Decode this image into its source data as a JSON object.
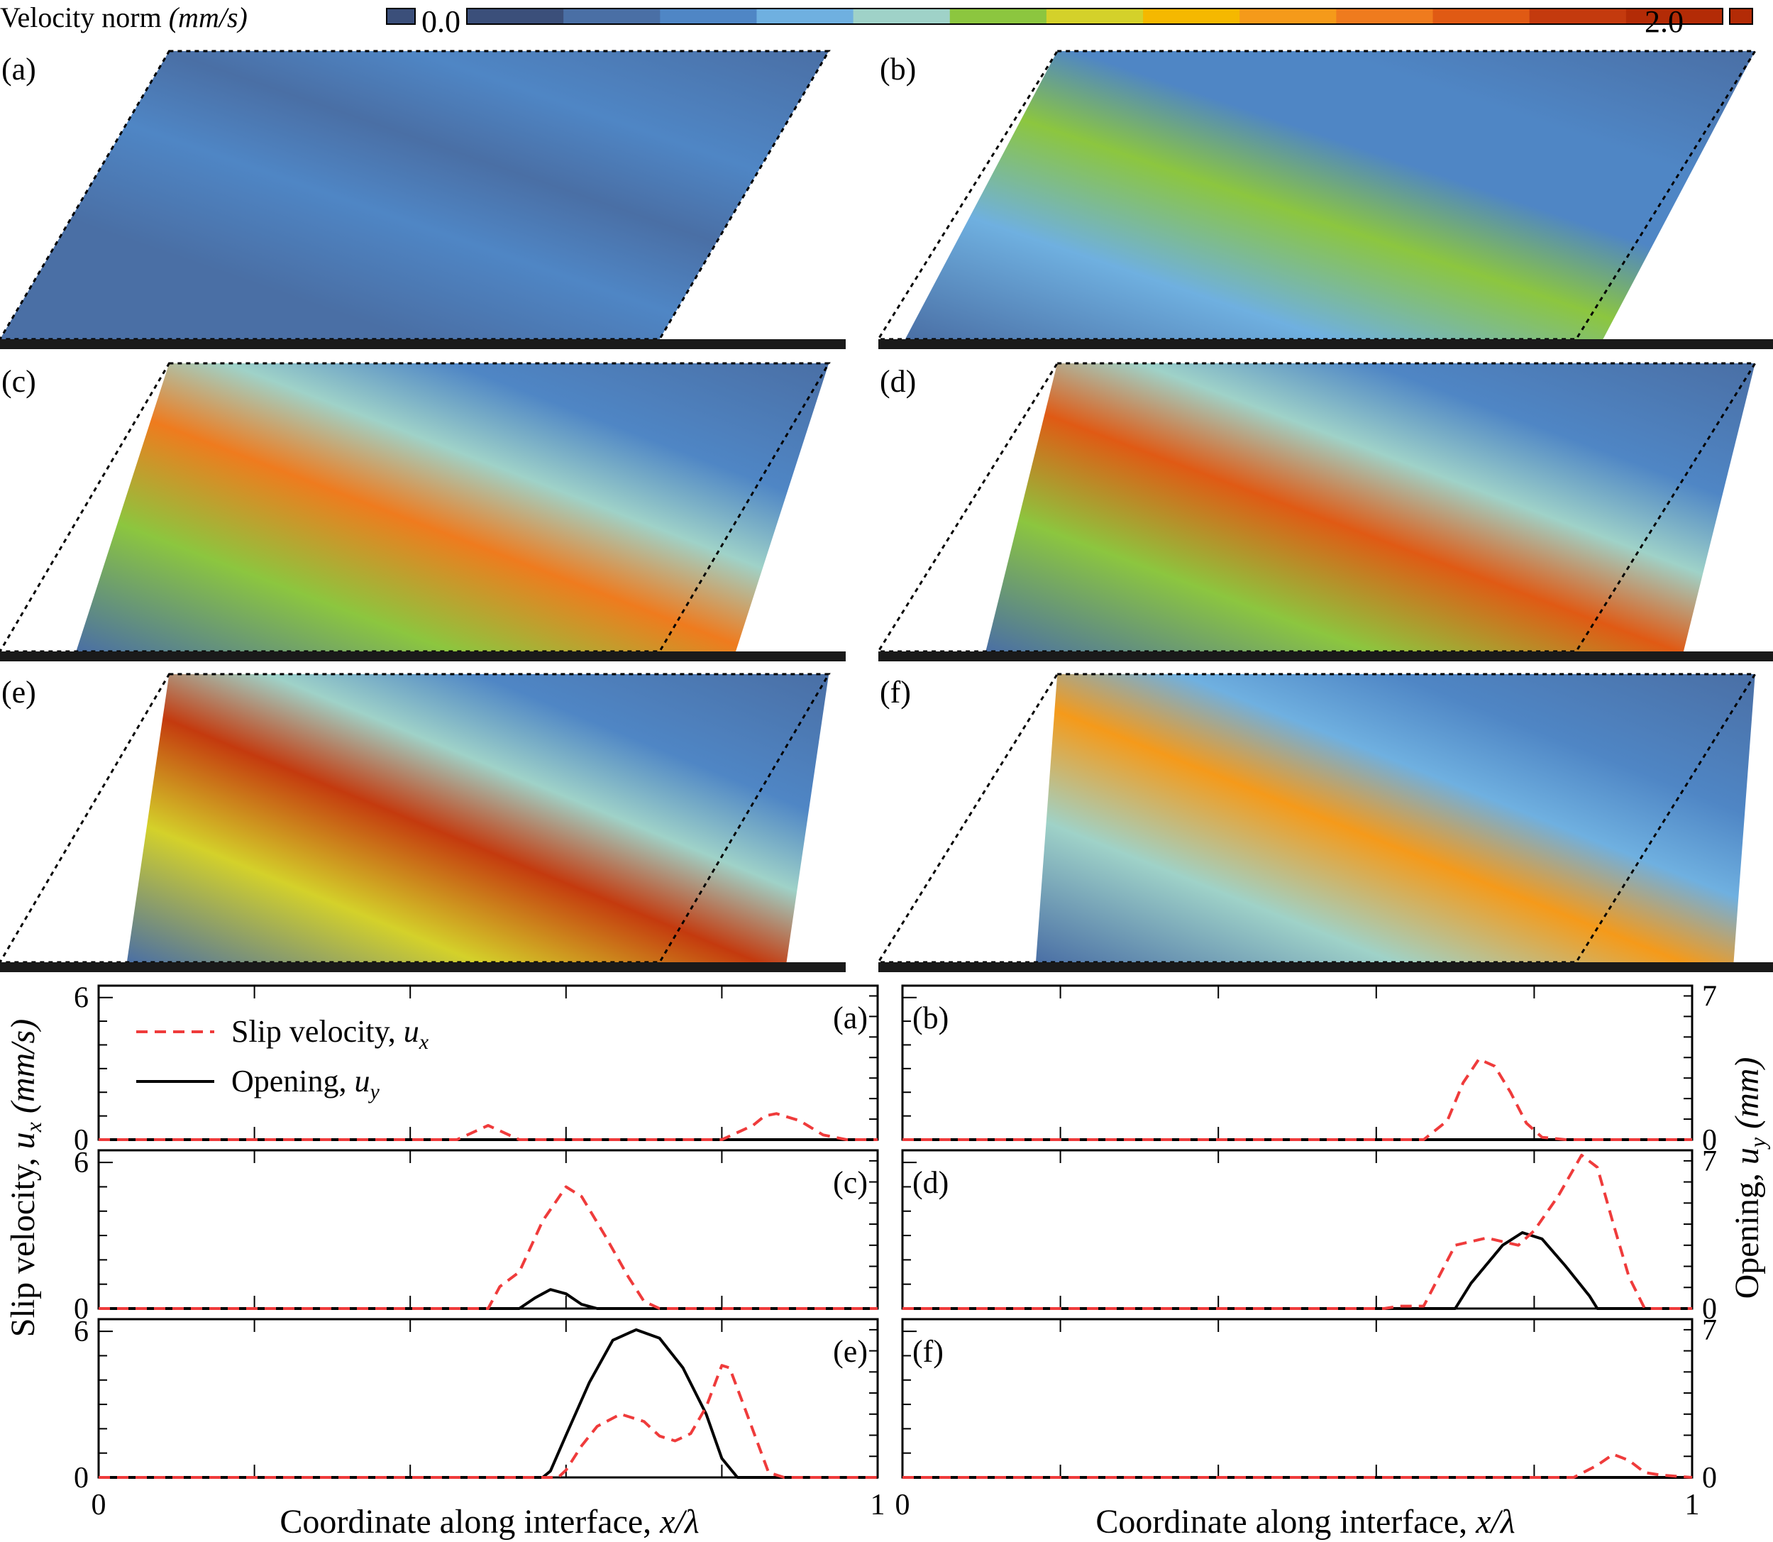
{
  "colorbar": {
    "label_plain": "Velocity norm ",
    "label_unit": "(mm/s)",
    "min_label": "0.0",
    "max_label": "2.0",
    "colors": [
      "#3b4f7a",
      "#4a6fa5",
      "#4f86c5",
      "#6fb0e0",
      "#9fd2c8",
      "#8cc63f",
      "#d4d12a",
      "#f5b800",
      "#f59a1a",
      "#ef7b1e",
      "#e05a14",
      "#c43a0e",
      "#b32b06"
    ]
  },
  "field_panels": [
    {
      "label": "(a)",
      "intensity": 0.15
    },
    {
      "label": "(b)",
      "intensity": 0.45
    },
    {
      "label": "(c)",
      "intensity": 0.75
    },
    {
      "label": "(d)",
      "intensity": 0.85
    },
    {
      "label": "(e)",
      "intensity": 0.9
    },
    {
      "label": "(f)",
      "intensity": 0.7
    }
  ],
  "axes": {
    "xlabel_plain": "Coordinate along interface, ",
    "xlabel_math": "x/λ",
    "ylabel_left_plain": "Slip velocity, ",
    "ylabel_left_sym": "u",
    "ylabel_left_sub": "x",
    "ylabel_left_unit": " (mm/s)",
    "ylabel_right_plain": "Opening, ",
    "ylabel_right_sym": "u",
    "ylabel_right_sub": "y",
    "ylabel_right_unit": " (mm)",
    "x_ticks": [
      "0",
      "1"
    ],
    "left_ticks": [
      "0",
      "6"
    ],
    "right_ticks": [
      "0",
      "7"
    ]
  },
  "legend": {
    "slip_plain": "Slip velocity, ",
    "slip_sym": "u",
    "slip_sub": "x",
    "open_plain": "Opening, ",
    "open_sym": "u",
    "open_sub": "y"
  },
  "chart_data": {
    "type": "line",
    "xlim": [
      0,
      1
    ],
    "ylim_slip": [
      0,
      6.5
    ],
    "ylim_opening": [
      0,
      7.5
    ],
    "subplots": [
      {
        "label": "(a)",
        "slip": [
          [
            0,
            0
          ],
          [
            0.46,
            0
          ],
          [
            0.5,
            0.6
          ],
          [
            0.54,
            0
          ],
          [
            0.8,
            0
          ],
          [
            0.84,
            0.6
          ],
          [
            0.855,
            1.0
          ],
          [
            0.87,
            1.1
          ],
          [
            0.9,
            0.8
          ],
          [
            0.93,
            0.2
          ],
          [
            0.96,
            0
          ],
          [
            1,
            0
          ]
        ],
        "opening": [
          [
            0,
            0
          ],
          [
            1,
            0
          ]
        ]
      },
      {
        "label": "(b)",
        "slip": [
          [
            0,
            0
          ],
          [
            0.66,
            0
          ],
          [
            0.69,
            0.8
          ],
          [
            0.71,
            2.4
          ],
          [
            0.73,
            3.4
          ],
          [
            0.75,
            3.1
          ],
          [
            0.77,
            2.0
          ],
          [
            0.79,
            0.7
          ],
          [
            0.81,
            0.1
          ],
          [
            0.84,
            0
          ],
          [
            1,
            0
          ]
        ],
        "opening": [
          [
            0,
            0
          ],
          [
            1,
            0
          ]
        ]
      },
      {
        "label": "(c)",
        "slip": [
          [
            0,
            0
          ],
          [
            0.5,
            0
          ],
          [
            0.515,
            0.9
          ],
          [
            0.54,
            1.5
          ],
          [
            0.57,
            3.6
          ],
          [
            0.6,
            5.0
          ],
          [
            0.62,
            4.6
          ],
          [
            0.65,
            3.0
          ],
          [
            0.68,
            1.3
          ],
          [
            0.7,
            0.3
          ],
          [
            0.72,
            0
          ],
          [
            1,
            0
          ]
        ],
        "opening": [
          [
            0,
            0
          ],
          [
            0.54,
            0
          ],
          [
            0.56,
            0.5
          ],
          [
            0.58,
            0.9
          ],
          [
            0.6,
            0.7
          ],
          [
            0.62,
            0.2
          ],
          [
            0.64,
            0
          ],
          [
            1,
            0
          ]
        ]
      },
      {
        "label": "(d)",
        "slip": [
          [
            0,
            0
          ],
          [
            0.61,
            0
          ],
          [
            0.63,
            0.1
          ],
          [
            0.66,
            0.1
          ],
          [
            0.7,
            2.6
          ],
          [
            0.74,
            2.9
          ],
          [
            0.78,
            2.6
          ],
          [
            0.8,
            3.2
          ],
          [
            0.83,
            4.6
          ],
          [
            0.86,
            6.3
          ],
          [
            0.88,
            5.8
          ],
          [
            0.9,
            3.5
          ],
          [
            0.92,
            1.3
          ],
          [
            0.94,
            0
          ],
          [
            1,
            0
          ]
        ],
        "opening": [
          [
            0,
            0
          ],
          [
            0.7,
            0
          ],
          [
            0.72,
            1.2
          ],
          [
            0.76,
            3.0
          ],
          [
            0.785,
            3.6
          ],
          [
            0.81,
            3.3
          ],
          [
            0.84,
            2.0
          ],
          [
            0.87,
            0.6
          ],
          [
            0.88,
            0
          ],
          [
            1,
            0
          ]
        ]
      },
      {
        "label": "(e)",
        "slip": [
          [
            0,
            0
          ],
          [
            0.59,
            0
          ],
          [
            0.6,
            0.3
          ],
          [
            0.62,
            1.3
          ],
          [
            0.64,
            2.1
          ],
          [
            0.67,
            2.6
          ],
          [
            0.7,
            2.3
          ],
          [
            0.72,
            1.7
          ],
          [
            0.74,
            1.5
          ],
          [
            0.76,
            1.8
          ],
          [
            0.78,
            2.9
          ],
          [
            0.8,
            4.6
          ],
          [
            0.81,
            4.5
          ],
          [
            0.83,
            2.8
          ],
          [
            0.86,
            0.2
          ],
          [
            0.88,
            0
          ],
          [
            1,
            0
          ]
        ],
        "opening": [
          [
            0,
            0
          ],
          [
            0.57,
            0
          ],
          [
            0.58,
            0.3
          ],
          [
            0.6,
            2.0
          ],
          [
            0.63,
            4.5
          ],
          [
            0.66,
            6.5
          ],
          [
            0.69,
            7.0
          ],
          [
            0.72,
            6.6
          ],
          [
            0.75,
            5.2
          ],
          [
            0.78,
            3.0
          ],
          [
            0.8,
            0.9
          ],
          [
            0.82,
            0
          ],
          [
            1,
            0
          ]
        ]
      },
      {
        "label": "(f)",
        "slip": [
          [
            0,
            0
          ],
          [
            0.85,
            0
          ],
          [
            0.88,
            0.5
          ],
          [
            0.9,
            0.95
          ],
          [
            0.92,
            0.7
          ],
          [
            0.94,
            0.2
          ],
          [
            0.96,
            0.1
          ],
          [
            1,
            0
          ]
        ],
        "opening": [
          [
            0,
            0
          ],
          [
            1,
            0
          ]
        ]
      }
    ]
  }
}
